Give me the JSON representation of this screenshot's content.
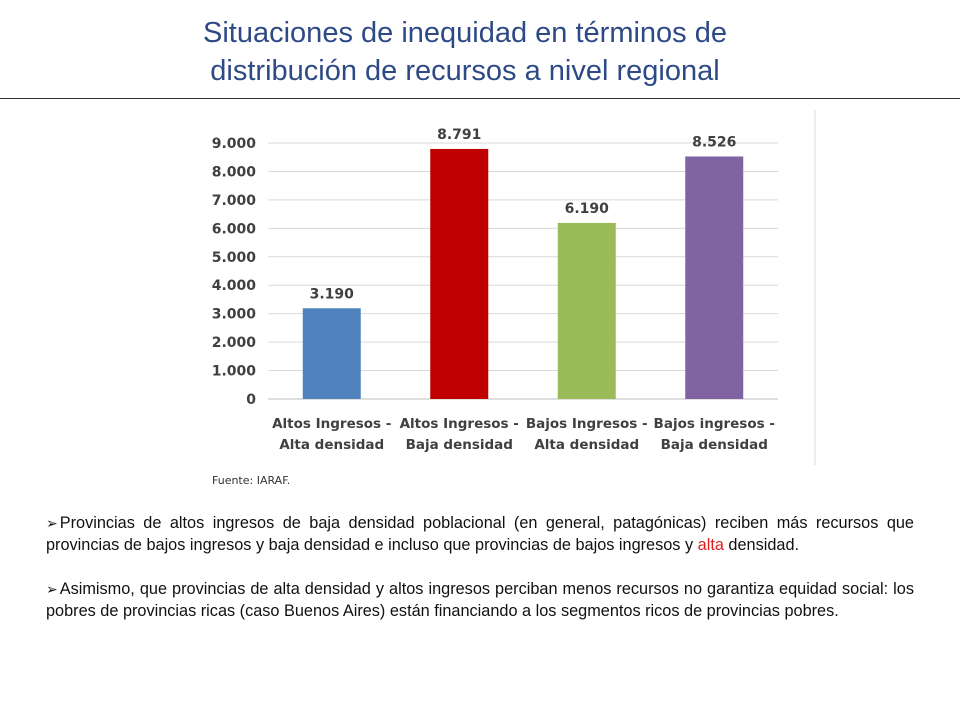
{
  "slide": {
    "title_line1": "Situaciones de inequidad en términos de",
    "title_line2": "distribución de recursos a nivel regional"
  },
  "chart_data": {
    "type": "bar",
    "title": "",
    "xlabel": "",
    "ylabel": "",
    "ylim": [
      0,
      9000
    ],
    "yticks": [
      "0",
      "1.000",
      "2.000",
      "3.000",
      "4.000",
      "5.000",
      "6.000",
      "7.000",
      "8.000",
      "9.000"
    ],
    "categories": [
      [
        "Altos Ingresos -",
        "Alta densidad"
      ],
      [
        "Altos Ingresos -",
        "Baja densidad"
      ],
      [
        "Bajos Ingresos -",
        "Alta densidad"
      ],
      [
        "Bajos ingresos -",
        "Baja densidad"
      ]
    ],
    "values": [
      3190,
      8791,
      6190,
      8526
    ],
    "value_labels": [
      "3.190",
      "8.791",
      "6.190",
      "8.526"
    ],
    "colors": [
      "#4f81bd",
      "#c00000",
      "#9bbb59",
      "#8064a2"
    ],
    "grid": true
  },
  "source": "Fuente: IARAF.",
  "bullets": {
    "marker": "➢",
    "b1_part1": "Provincias de altos ingresos de baja densidad poblacional (en general, patagónicas) reciben más recursos que provincias de bajos ingresos y baja densidad e incluso que provincias de bajos ingresos y ",
    "b1_highlight": "alta",
    "b1_part2": " densidad.",
    "b2": "Asimismo, que provincias de alta densidad y altos ingresos perciban menos recursos no garantiza equidad social: los pobres de provincias ricas (caso Buenos Aires) están financiando a los segmentos ricos de provincias pobres."
  }
}
